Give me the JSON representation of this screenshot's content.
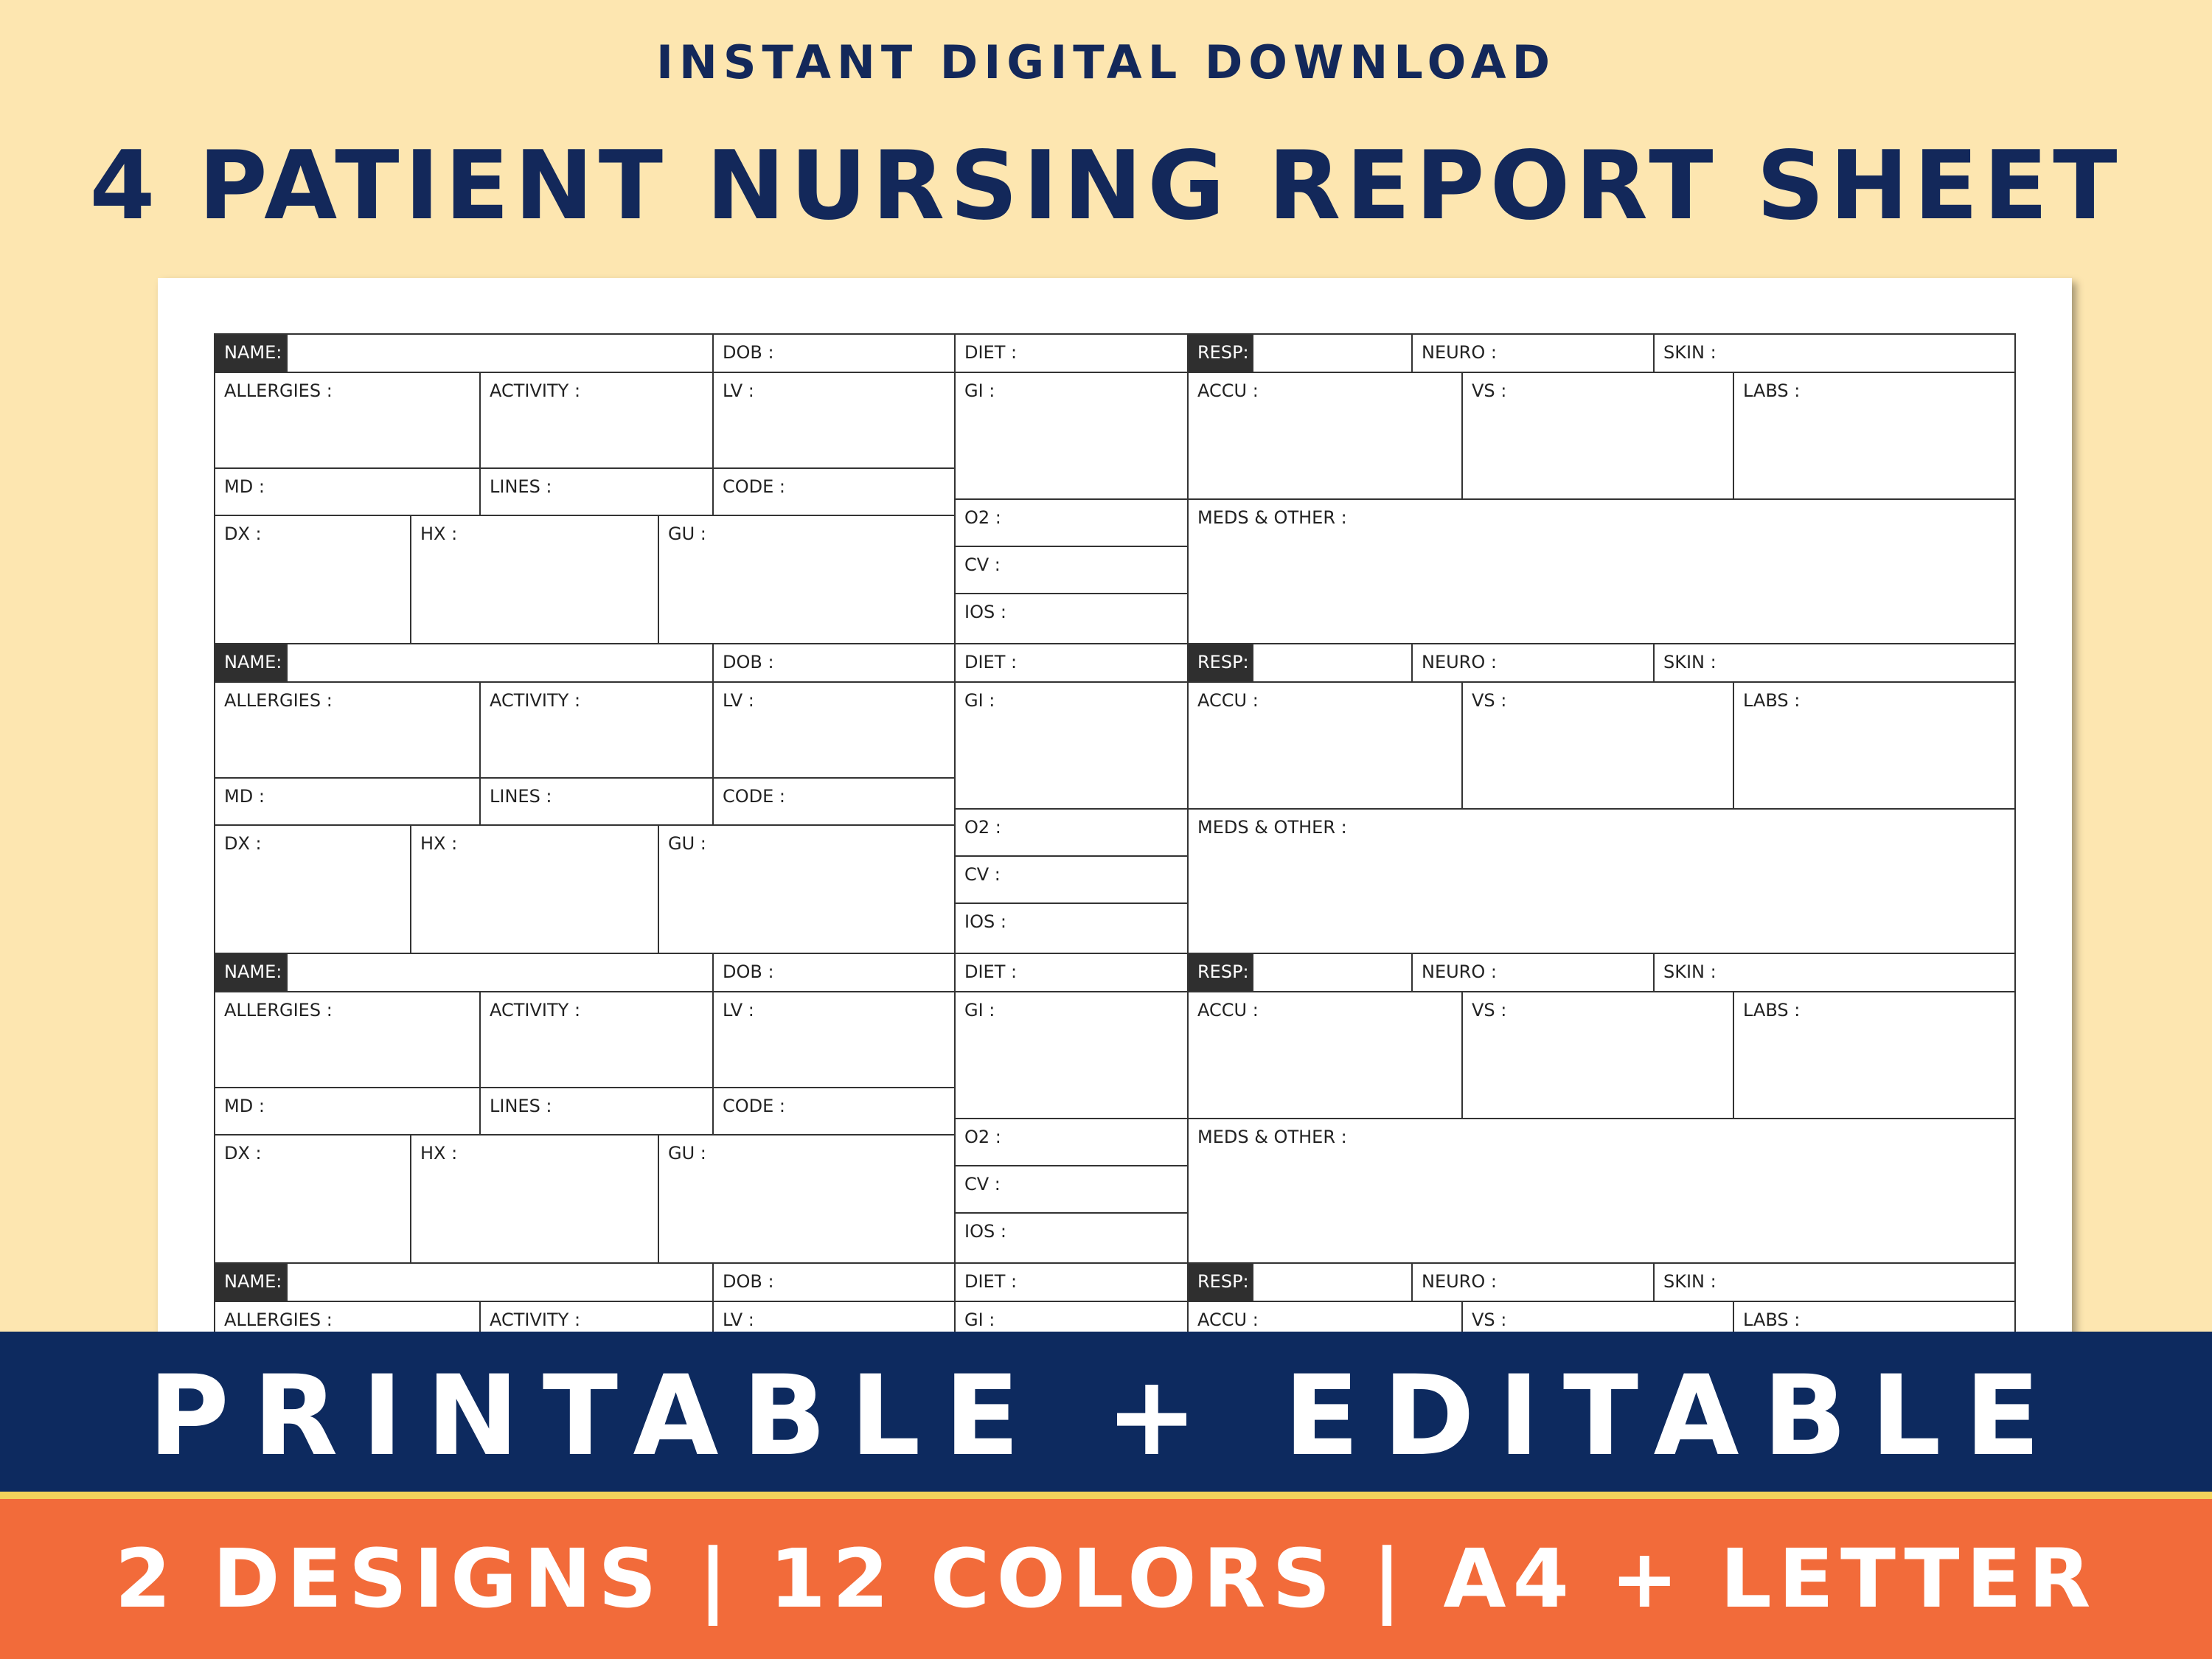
{
  "header": {
    "subtitle": "INSTANT DIGITAL DOWNLOAD",
    "title": "4 PATIENT NURSING REPORT SHEET"
  },
  "sheet": {
    "labels": {
      "name": "NAME:",
      "dob": "DOB :",
      "diet": "DIET :",
      "resp": "RESP:",
      "neuro": "NEURO :",
      "skin": "SKIN :",
      "allergies": "ALLERGIES :",
      "activity": "ACTIVITY :",
      "lv": "LV :",
      "gi": "GI :",
      "accu": "ACCU :",
      "vs": "VS :",
      "labs": "LABS :",
      "md": "MD :",
      "lines": "LINES :",
      "code": "CODE :",
      "o2": "O2 :",
      "meds": "MEDS & OTHER :",
      "dx": "DX :",
      "hx": "HX :",
      "gu": "GU :",
      "cv": "CV :",
      "ios": "IOS :"
    },
    "patient_blocks": 4
  },
  "footer": {
    "banner": "PRINTABLE + EDITABLE",
    "details": "2 DESIGNS | 12 COLORS | A4 + LETTER"
  },
  "colors": {
    "background": "#fde6b0",
    "navy": "#0d2a5f",
    "title_text": "#13285a",
    "orange": "#f26b3a",
    "stripe": "#f3d35b",
    "name_label_bg": "#2f2f2f"
  }
}
